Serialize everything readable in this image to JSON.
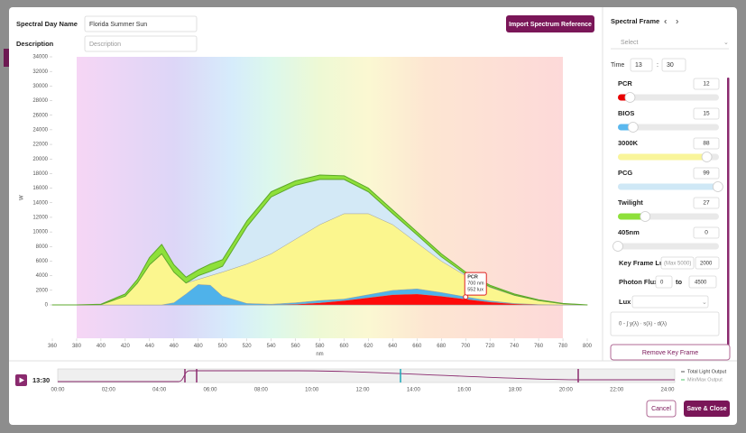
{
  "form": {
    "name_label": "Spectral Day Name",
    "name_value": "Florida Summer Sun",
    "description_label": "Description",
    "description_placeholder": "Description",
    "import_button": "Import Spectrum Reference"
  },
  "chart_data": {
    "type": "area",
    "stacked": true,
    "x_label": "nm",
    "y_label": "W",
    "x": [
      360,
      380,
      400,
      420,
      430,
      440,
      450,
      460,
      470,
      480,
      490,
      500,
      520,
      540,
      560,
      580,
      600,
      620,
      640,
      660,
      680,
      700,
      720,
      740,
      760,
      780,
      800
    ],
    "xlim": [
      360,
      800
    ],
    "xticks": [
      360,
      380,
      400,
      420,
      440,
      460,
      480,
      500,
      520,
      540,
      560,
      580,
      600,
      620,
      640,
      660,
      680,
      700,
      720,
      740,
      760,
      780,
      800
    ],
    "ylim": [
      -4600,
      34000
    ],
    "yticks": [
      0,
      2000,
      4000,
      6000,
      8000,
      10000,
      12000,
      14000,
      16000,
      18000,
      20000,
      22000,
      24000,
      26000,
      28000,
      30000,
      32000,
      34000
    ],
    "series": [
      {
        "name": "PCR",
        "color": "#ff0a0a",
        "values": [
          0,
          0,
          0,
          0,
          0,
          0,
          0,
          0,
          0,
          0,
          0,
          0,
          0,
          0,
          100,
          300,
          600,
          1000,
          1400,
          1500,
          1200,
          800,
          400,
          150,
          50,
          0,
          0
        ]
      },
      {
        "name": "BIOS",
        "color": "#4fb2ea",
        "values": [
          0,
          0,
          0,
          0,
          0,
          0,
          0,
          300,
          1500,
          2800,
          2700,
          1200,
          200,
          100,
          200,
          300,
          200,
          400,
          600,
          700,
          500,
          300,
          150,
          50,
          0,
          0,
          0
        ]
      },
      {
        "name": "3000K",
        "color": "#fbf68e",
        "values": [
          0,
          0,
          50,
          1200,
          3000,
          5500,
          7000,
          4200,
          1500,
          700,
          1300,
          3300,
          5400,
          6900,
          8700,
          10400,
          11700,
          11100,
          9000,
          6300,
          4300,
          2900,
          1850,
          1100,
          550,
          150,
          0
        ]
      },
      {
        "name": "PCG",
        "color": "#d3e9f6",
        "values": [
          0,
          0,
          0,
          0,
          0,
          0,
          0,
          0,
          0,
          500,
          600,
          800,
          5100,
          7800,
          7400,
          6200,
          4700,
          3000,
          1500,
          1100,
          600,
          200,
          100,
          50,
          0,
          0,
          0
        ]
      },
      {
        "name": "Twilight",
        "color": "#8ee03a",
        "values": [
          0,
          0,
          50,
          300,
          500,
          1000,
          1300,
          1000,
          800,
          800,
          1000,
          900,
          800,
          700,
          600,
          600,
          500,
          500,
          500,
          400,
          400,
          300,
          200,
          150,
          100,
          50,
          0
        ]
      }
    ],
    "annotation": {
      "title": "PCR",
      "lines": [
        "700 nm",
        "552 lux"
      ],
      "x": 700,
      "y": 1100
    }
  },
  "timeline": {
    "current_time": "13:30",
    "ticks": [
      "00:00",
      "02:00",
      "04:00",
      "06:00",
      "08:00",
      "10:00",
      "12:00",
      "14:00",
      "16:00",
      "18:00",
      "20:00",
      "22:00",
      "24:00"
    ],
    "legend": [
      "Total Light Output",
      "Min/Max Output"
    ]
  },
  "panel": {
    "title": "Spectral Frame",
    "select_placeholder": "Select",
    "time_label": "Time",
    "hour": "13",
    "separator": ":",
    "minute": "30",
    "channels": [
      {
        "name": "PCR",
        "value": 12,
        "color": "#e80000"
      },
      {
        "name": "BIOS",
        "value": 15,
        "color": "#5bb8ee"
      },
      {
        "name": "3000K",
        "value": 88,
        "color": "#f9f59a"
      },
      {
        "name": "PCG",
        "value": 99,
        "color": "#cfe8f6"
      },
      {
        "name": "Twilight",
        "value": 27,
        "color": "#8ee03a"
      },
      {
        "name": "405nm",
        "value": 0
      }
    ],
    "key_frame_lux_label": "Key Frame Lux",
    "key_frame_lux_max": "(Max 5000)",
    "key_frame_lux_value": "2000",
    "photon_flux_label": "Photon Flux",
    "photon_flux_min": "0",
    "photon_flux_to": "to",
    "photon_flux_max": "4500",
    "lux_label": "Lux",
    "formula": "0 - ∫ y(λ) · s(λ) - d(λ)",
    "remove_button": "Remove Key Frame",
    "cancel_button": "Cancel",
    "save_button": "Save & Close"
  }
}
